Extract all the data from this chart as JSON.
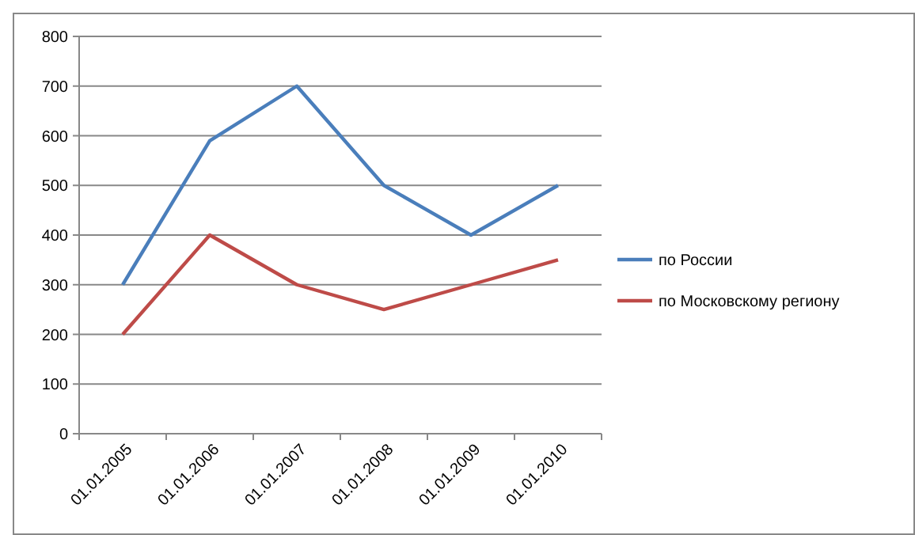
{
  "chart_data": {
    "type": "line",
    "categories": [
      "01.01.2005",
      "01.01.2006",
      "01.01.2007",
      "01.01.2008",
      "01.01.2009",
      "01.01.2010"
    ],
    "series": [
      {
        "name": "по России",
        "color": "#4a7ebb",
        "values": [
          300,
          590,
          700,
          500,
          400,
          500
        ]
      },
      {
        "name": "по Московскому региону",
        "color": "#be4b48",
        "values": [
          200,
          400,
          300,
          250,
          300,
          350
        ]
      }
    ],
    "ylim": [
      0,
      800
    ],
    "yticks": [
      0,
      100,
      200,
      300,
      400,
      500,
      600,
      700,
      800
    ],
    "grid": "y",
    "legend": "right",
    "marker": "none",
    "line_style": "solid"
  }
}
